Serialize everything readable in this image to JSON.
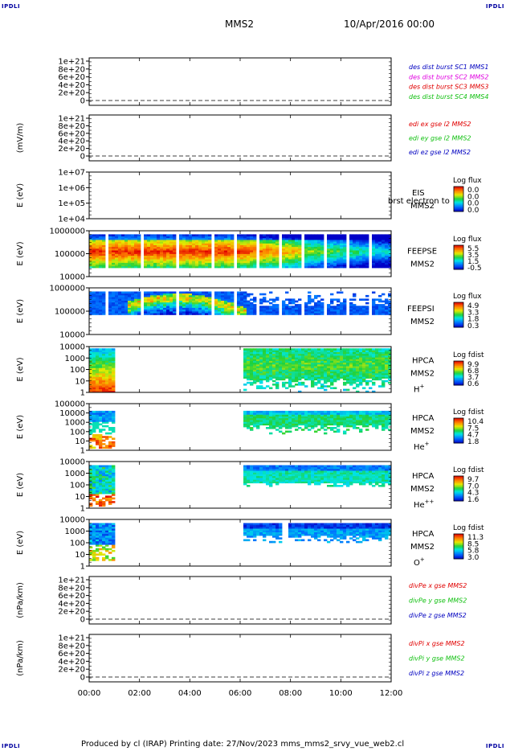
{
  "corners": {
    "tl": "IPDLI",
    "tr": "IPDLI",
    "bl": "IPDLI",
    "br": "IPDLI"
  },
  "header": {
    "spacecraft": "MMS2",
    "date": "10/Apr/2016 00:00"
  },
  "footer": {
    "text": "Produced by cl (IRAP)   Printing date: 27/Nov/2023   mms_mms2_srvy_vue_web2.cl"
  },
  "colors": {
    "axis": "#000000",
    "red": "#e00000",
    "magenta": "#e000e0",
    "green": "#10c010",
    "blue": "#0000c0"
  },
  "chart_data": [
    {
      "id": "p1",
      "type": "line",
      "ylabel": "",
      "yticks": [
        "1e+21",
        "8e+20",
        "6e+20",
        "4e+20",
        "2e+20",
        "0"
      ],
      "legend": [
        {
          "text": "des dist burst SC1 MMS1",
          "color": "#0000c0"
        },
        {
          "text": "des dist burst SC2 MMS2",
          "color": "#e000e0"
        },
        {
          "text": "des dist burst SC3 MMS3",
          "color": "#e00000"
        },
        {
          "text": "des dist burst SC4 MMS4",
          "color": "#10c010"
        }
      ],
      "series": [],
      "zero_line": true
    },
    {
      "id": "p2",
      "type": "line",
      "ylabel": "(mV/m)",
      "yticks": [
        "1e+21",
        "8e+20",
        "6e+20",
        "4e+20",
        "2e+20",
        "0"
      ],
      "legend": [
        {
          "text": "edi ex gse l2 MMS2",
          "color": "#e00000"
        },
        {
          "text": "edi ey gse l2 MMS2",
          "color": "#10c010"
        },
        {
          "text": "edi ez gse l2 MMS2",
          "color": "#0000c0"
        }
      ],
      "series": [],
      "zero_line": true
    },
    {
      "id": "p3",
      "type": "heatmap",
      "ylabel": "E (eV)",
      "yticks": [
        "1e+07",
        "1e+06",
        "1e+05",
        "1e+04"
      ],
      "instrument": "EIS",
      "sc": "MMS2",
      "overlay": "brst electron to",
      "cbar_title": "Log flux",
      "cbar_ticks": [
        "0.0",
        "0.0",
        "0.0",
        "0.0"
      ]
    },
    {
      "id": "p4",
      "type": "heatmap",
      "ylabel": "E (eV)",
      "yticks": [
        "1000000",
        "100000",
        "10000"
      ],
      "instrument": "FEEPSE",
      "sc": "MMS2",
      "cbar_title": "Log flux",
      "cbar_ticks": [
        "5.5",
        "3.5",
        "1.5",
        "-0.5"
      ]
    },
    {
      "id": "p5",
      "type": "heatmap",
      "ylabel": "E (eV)",
      "yticks": [
        "1000000",
        "100000",
        "10000"
      ],
      "instrument": "FEEPSI",
      "sc": "MMS2",
      "cbar_title": "Log flux",
      "cbar_ticks": [
        "4.9",
        "3.3",
        "1.8",
        "0.3"
      ]
    },
    {
      "id": "p6",
      "type": "heatmap",
      "ylabel": "E (eV)",
      "yticks": [
        "10000",
        "1000",
        "100",
        "10",
        "1"
      ],
      "instrument": "HPCA",
      "sc": "MMS2",
      "species": "H",
      "species_sup": "+",
      "cbar_title": "Log fdist",
      "cbar_ticks": [
        "9.9",
        "6.8",
        "3.7",
        "0.6"
      ]
    },
    {
      "id": "p7",
      "type": "heatmap",
      "ylabel": "E (eV)",
      "yticks": [
        "100000",
        "10000",
        "1000",
        "100",
        "10",
        "1"
      ],
      "instrument": "HPCA",
      "sc": "MMS2",
      "species": "He",
      "species_sup": "+",
      "cbar_title": "Log fdist",
      "cbar_ticks": [
        "10.4",
        "7.5",
        "4.7",
        "1.8"
      ]
    },
    {
      "id": "p8",
      "type": "heatmap",
      "ylabel": "E (eV)",
      "yticks": [
        "10000",
        "1000",
        "100",
        "10",
        "1"
      ],
      "instrument": "HPCA",
      "sc": "MMS2",
      "species": "He",
      "species_sup": "++",
      "cbar_title": "Log fdist",
      "cbar_ticks": [
        "9.7",
        "7.0",
        "4.3",
        "1.6"
      ]
    },
    {
      "id": "p9",
      "type": "heatmap",
      "ylabel": "E (eV)",
      "yticks": [
        "10000",
        "1000",
        "100",
        "10",
        "1"
      ],
      "instrument": "HPCA",
      "sc": "MMS2",
      "species": "O",
      "species_sup": "+",
      "cbar_title": "Log fdist",
      "cbar_ticks": [
        "11.3",
        "8.5",
        "5.8",
        "3.0"
      ]
    },
    {
      "id": "p10",
      "type": "line",
      "ylabel": "(nPa/km)",
      "yticks": [
        "1e+21",
        "8e+20",
        "6e+20",
        "4e+20",
        "2e+20",
        "0"
      ],
      "legend": [
        {
          "text": "divPe x gse MMS2",
          "color": "#e00000"
        },
        {
          "text": "divPe y gse MMS2",
          "color": "#10c010"
        },
        {
          "text": "divPe z gse MMS2",
          "color": "#0000c0"
        }
      ],
      "series": [],
      "zero_line": true
    },
    {
      "id": "p11",
      "type": "line",
      "ylabel": "(nPa/km)",
      "yticks": [
        "1e+21",
        "8e+20",
        "6e+20",
        "4e+20",
        "2e+20",
        "0"
      ],
      "legend": [
        {
          "text": "divPi x gse MMS2",
          "color": "#e00000"
        },
        {
          "text": "divPi y gse MMS2",
          "color": "#10c010"
        },
        {
          "text": "divPi z gse MMS2",
          "color": "#0000c0"
        }
      ],
      "series": [],
      "zero_line": true
    }
  ],
  "xaxis": {
    "ticks": [
      "00:00",
      "02:00",
      "04:00",
      "06:00",
      "08:00",
      "10:00",
      "12:00"
    ],
    "range_hours": [
      0,
      12
    ]
  }
}
